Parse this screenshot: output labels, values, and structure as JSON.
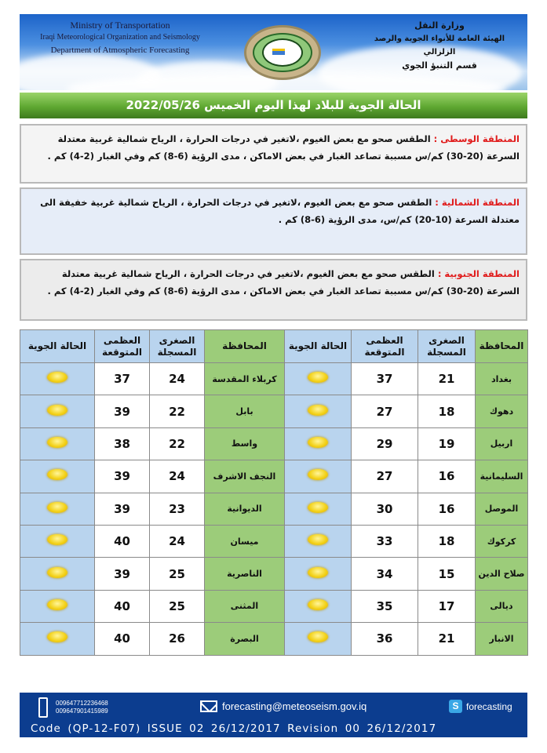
{
  "header": {
    "en_lines": [
      "Ministry of Transportation",
      "Iraqi Meteorological Organization and Seismology",
      "Department of Atmospheric Forecasting"
    ],
    "ar_lines": [
      "وزارة النقل",
      "الهيئة العامة للأنواء الجوية والرصد الزلزالي",
      "قسم التنبؤ الجوي"
    ]
  },
  "title": "الحالة الجوية للبلاد لهذا اليوم الخميس  2022/05/26",
  "regions": [
    {
      "label": "المنطقة الوسطى :",
      "text": " الطقس صحو مع بعض الغيوم ،لاتغير في درجات الحرارة ، الرياح شمالية غربية معتدلة السرعة (20-30) كم/س مسببة تصاعد الغبار في بعض الاماكن ،  مدى الرؤية (6-8) كم وفي الغبار (2-4) كم ."
    },
    {
      "label": "المنطقة الشمالية :",
      "text": " الطقس صحو مع بعض الغيوم ،لاتغير في درجات الحرارة ، الرياح شمالية غربية خفيفة الى معتدلة السرعة (10-20) كم/س،  مدى الرؤية (6-8) كم ."
    },
    {
      "label": "المنطقة الجنوبية :",
      "text": " الطقس صحو مع بعض الغيوم ،لاتغير في درجات الحرارة ، الرياح شمالية غربية معتدلة السرعة (20-30) كم/س مسببة تصاعد الغبار في بعض الاماكن ،  مدى الرؤية (6-8) كم وفي الغبار (2-4) كم ."
    }
  ],
  "table": {
    "headers": {
      "governorate": "المحافظة",
      "min": "الصغرى المسجلة",
      "max": "العظمى المتوقعة",
      "weather": "الحالة الجوية"
    },
    "weather_icon": "sun-icon",
    "rows": [
      [
        {
          "gov": "بغداد",
          "min": "21",
          "max": "37"
        },
        {
          "gov": "كربلاء المقدسة",
          "min": "24",
          "max": "37"
        }
      ],
      [
        {
          "gov": "دهوك",
          "min": "18",
          "max": "27"
        },
        {
          "gov": "بابل",
          "min": "22",
          "max": "39"
        }
      ],
      [
        {
          "gov": "اربيل",
          "min": "19",
          "max": "29"
        },
        {
          "gov": "واسط",
          "min": "22",
          "max": "38"
        }
      ],
      [
        {
          "gov": "السليمانية",
          "min": "16",
          "max": "27"
        },
        {
          "gov": "النجف الاشرف",
          "min": "24",
          "max": "39"
        }
      ],
      [
        {
          "gov": "الموصل",
          "min": "16",
          "max": "30"
        },
        {
          "gov": "الديوانية",
          "min": "23",
          "max": "39"
        }
      ],
      [
        {
          "gov": "كركوك",
          "min": "18",
          "max": "33"
        },
        {
          "gov": "ميسان",
          "min": "24",
          "max": "40"
        }
      ],
      [
        {
          "gov": "صلاح الدين",
          "min": "15",
          "max": "34"
        },
        {
          "gov": "الناصرية",
          "min": "25",
          "max": "39"
        }
      ],
      [
        {
          "gov": "ديالى",
          "min": "17",
          "max": "35"
        },
        {
          "gov": "المثنى",
          "min": "25",
          "max": "40"
        }
      ],
      [
        {
          "gov": "الانبار",
          "min": "21",
          "max": "36"
        },
        {
          "gov": "البصرة",
          "min": "26",
          "max": "40"
        }
      ]
    ]
  },
  "footer": {
    "phones": [
      "009647712236468",
      "009647901415989"
    ],
    "email": "forecasting@meteoseism.gov.iq",
    "skype": "forecasting",
    "code": "Code  (QP-12-F07)  ISSUE  02  26/12/2017  Revision  00  26/12/2017"
  },
  "colors": {
    "title_bar": "#5fa832",
    "region_label": "#e01b1b",
    "footer_bg": "#0c3d8f",
    "gov_cell": "#9ccc7a",
    "weather_cell": "#b9d4ee"
  }
}
